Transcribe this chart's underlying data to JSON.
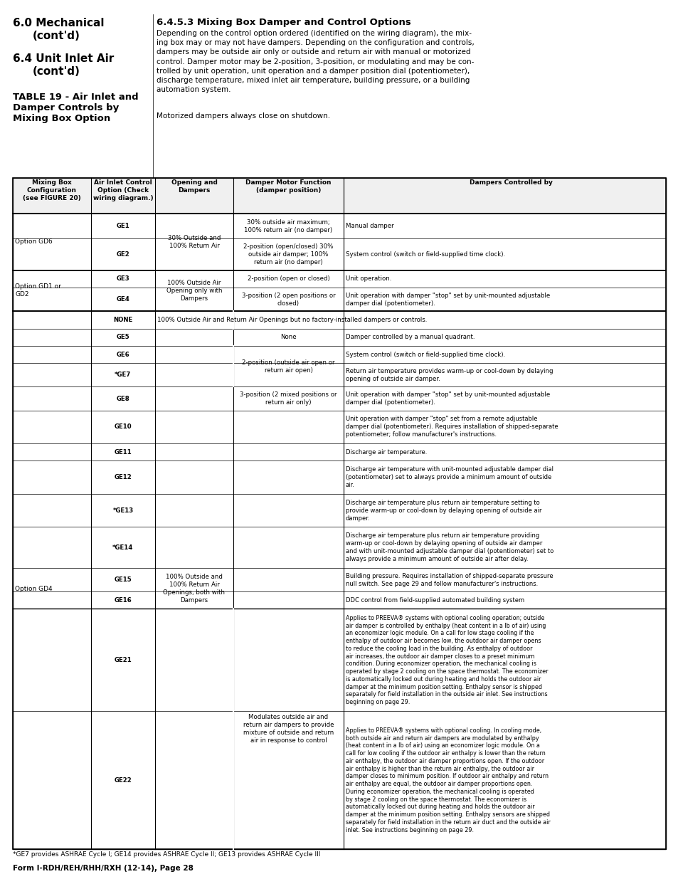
{
  "page_title_left1": "6.0 Mechanical",
  "page_title_left2": "(cont'd)",
  "page_title_left3": "6.4 Unit Inlet Air",
  "page_title_left4": "(cont'd)",
  "page_table_title": "TABLE 19 - Air Inlet and\nDamper Controls by\nMixing Box Option",
  "section_title": "6.4.5.3 Mixing Box Damper and Control Options",
  "section_body": "Depending on the control option ordered (identified on the wiring diagram), the mixing box may or may not have dampers. Depending on the configuration and controls, dampers may be outside air only or outside and return air with manual or motorized control. Damper motor may be 2-position, 3-position, or modulating and may be controlled by unit operation, unit operation and a damper position dial (potentiometer), discharge temperature, mixed inlet air temperature, building pressure, or a building automation system.",
  "motorized_note": "Motorized dampers always close on shutdown.",
  "col_headers": [
    "Mixing Box\nConfiguration\n(see FIGURE 20)",
    "Air Inlet Control\nOption (Check\nwiring diagram.)",
    "Opening and\nDampers",
    "Damper Motor Function\n(damper position)",
    "Dampers Controlled by"
  ],
  "footer_note": "*GE7 provides ASHRAE Cycle I; GE14 provides ASHRAE Cycle II; GE13 provides ASHRAE Cycle III",
  "form_line": "Form I-RDH/REH/RHH/RXH (12-14), Page 28",
  "bg_color": "#ffffff",
  "header_bg": "#ffffff",
  "table_border": "#000000",
  "text_color": "#000000"
}
